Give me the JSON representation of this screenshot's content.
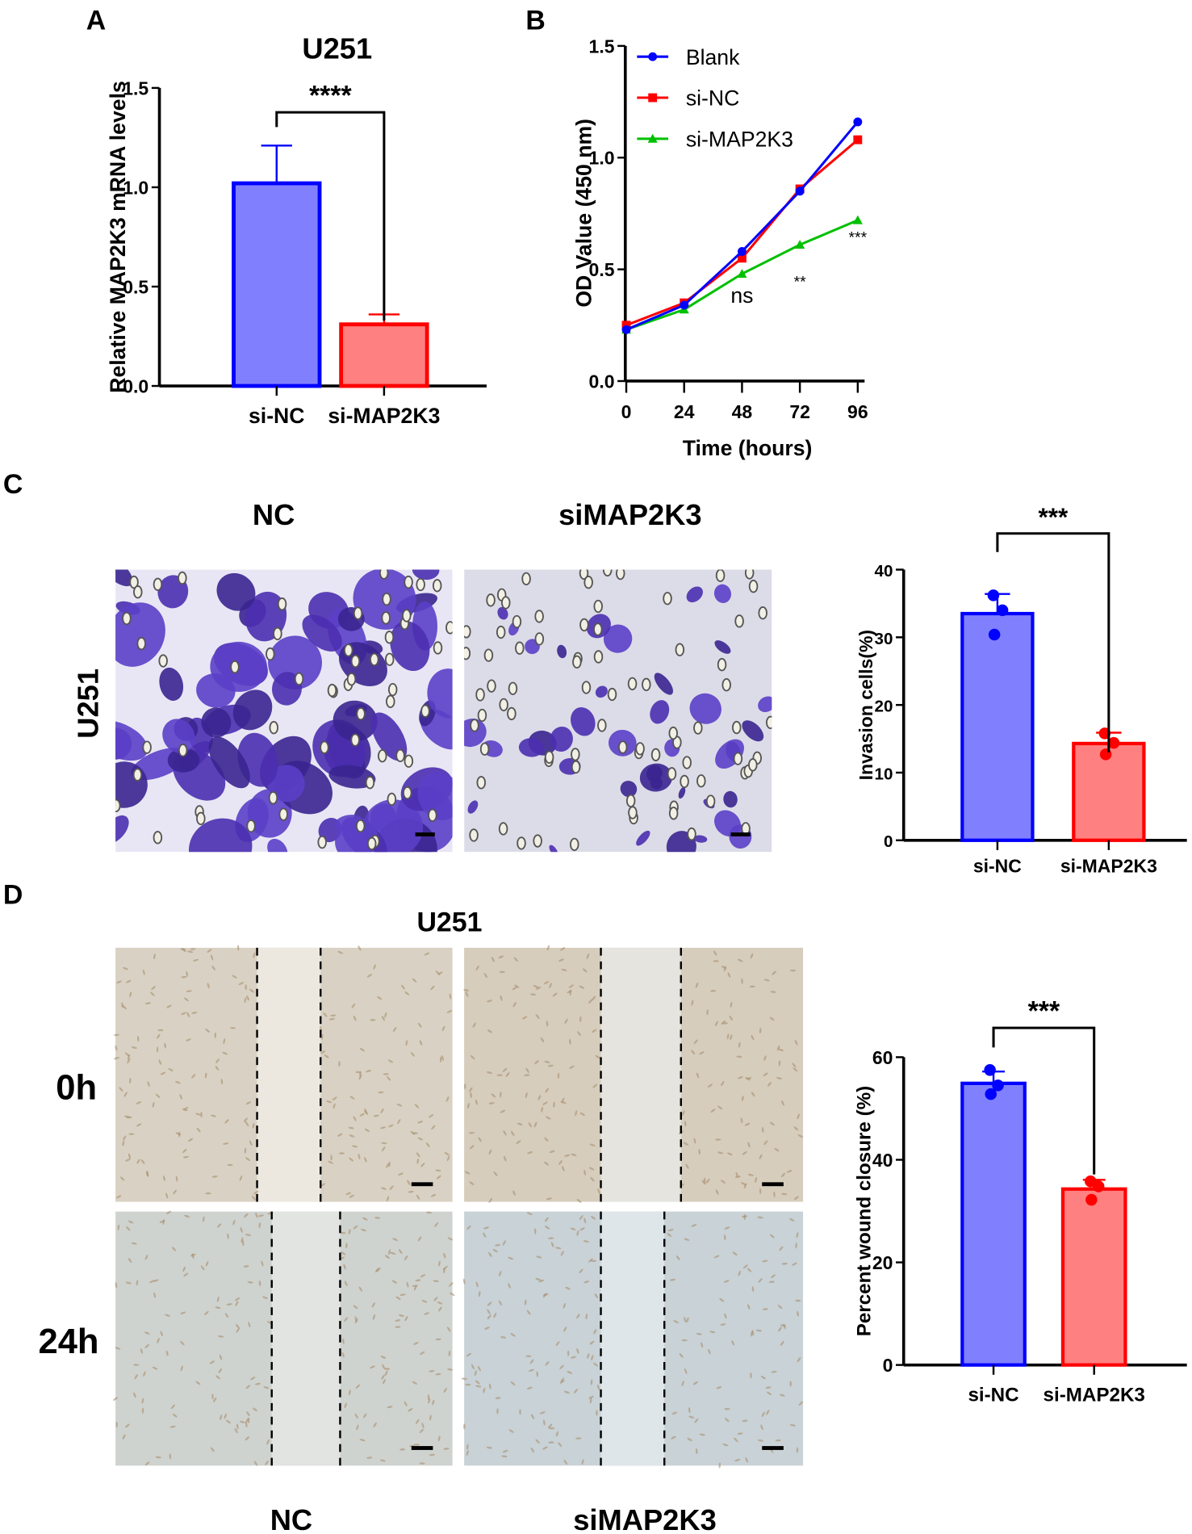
{
  "panel_labels": {
    "a": "A",
    "b": "B",
    "c": "C",
    "d": "D"
  },
  "panel_c": {
    "col_nc": "NC",
    "col_si": "siMAP2K3",
    "row_label": "U251"
  },
  "panel_d": {
    "title": "U251",
    "row_0h": "0h",
    "row_24h": "24h",
    "col_nc": "NC",
    "col_si": "siMAP2K3"
  },
  "colors": {
    "blue": "#0000ff",
    "blue_fill": "#8080ff",
    "red": "#ff0000",
    "red_fill": "#ff8080",
    "green": "#00c000",
    "stain": "#5a3fc0"
  },
  "chart_data": [
    {
      "id": "A",
      "type": "bar",
      "title": "U251",
      "ylabel": "Relative MAP2K3 mRNA levels",
      "xlabel": "",
      "categories": [
        "si-NC",
        "si-MAP2K3"
      ],
      "values": [
        1.02,
        0.31
      ],
      "error": [
        0.19,
        0.05
      ],
      "ylim": [
        0,
        1.5
      ],
      "yticks": [
        "0.0",
        "0.5",
        "1.0",
        "1.5"
      ],
      "ytick_values": [
        0,
        0.5,
        1.0,
        1.5
      ],
      "significance": "****"
    },
    {
      "id": "B",
      "type": "line",
      "ylabel": "OD Value (450 nm)",
      "xlabel": "Time (hours)",
      "x": [
        0,
        24,
        48,
        72,
        96
      ],
      "xticks": [
        "0",
        "24",
        "48",
        "72",
        "96"
      ],
      "ylim": [
        0,
        1.5
      ],
      "yticks": [
        "0.0",
        "0.5",
        "1.0",
        "1.5"
      ],
      "ytick_values": [
        0,
        0.5,
        1.0,
        1.5
      ],
      "legend_position": "top-left",
      "series": [
        {
          "name": "Blank",
          "values": [
            0.23,
            0.34,
            0.58,
            0.85,
            1.16
          ],
          "marker": "circle"
        },
        {
          "name": "si-NC",
          "values": [
            0.25,
            0.35,
            0.55,
            0.86,
            1.08
          ],
          "marker": "square"
        },
        {
          "name": "si-MAP2K3",
          "values": [
            0.23,
            0.32,
            0.48,
            0.61,
            0.72
          ],
          "marker": "triangle"
        }
      ],
      "annotations": [
        {
          "x": 48,
          "y": 0.35,
          "text": "ns"
        },
        {
          "x": 72,
          "y": 0.42,
          "text": "**"
        },
        {
          "x": 96,
          "y": 0.62,
          "text": "***"
        }
      ]
    },
    {
      "id": "C",
      "type": "bar",
      "ylabel": "Invasion cells(%)",
      "xlabel": "",
      "categories": [
        "si-NC",
        "si-MAP2K3"
      ],
      "values": [
        33.5,
        14.3
      ],
      "error": [
        2.9,
        1.6
      ],
      "points": [
        [
          36.2,
          34.0,
          30.4
        ],
        [
          15.8,
          14.4,
          12.7
        ]
      ],
      "ylim": [
        0,
        40
      ],
      "yticks": [
        "0",
        "10",
        "20",
        "30",
        "40"
      ],
      "ytick_values": [
        0,
        10,
        20,
        30,
        40
      ],
      "significance": "***"
    },
    {
      "id": "D",
      "type": "bar",
      "ylabel": "Percent wound closure (%)",
      "xlabel": "",
      "categories": [
        "si-NC",
        "si-MAP2K3"
      ],
      "values": [
        54.9,
        34.3
      ],
      "error": [
        2.3,
        1.8
      ],
      "points": [
        [
          57.5,
          54.5,
          52.8
        ],
        [
          35.8,
          34.8,
          32.2
        ]
      ],
      "ylim": [
        0,
        60
      ],
      "yticks": [
        "0",
        "20",
        "40",
        "60"
      ],
      "ytick_values": [
        0,
        20,
        40,
        60
      ],
      "significance": "***"
    }
  ]
}
